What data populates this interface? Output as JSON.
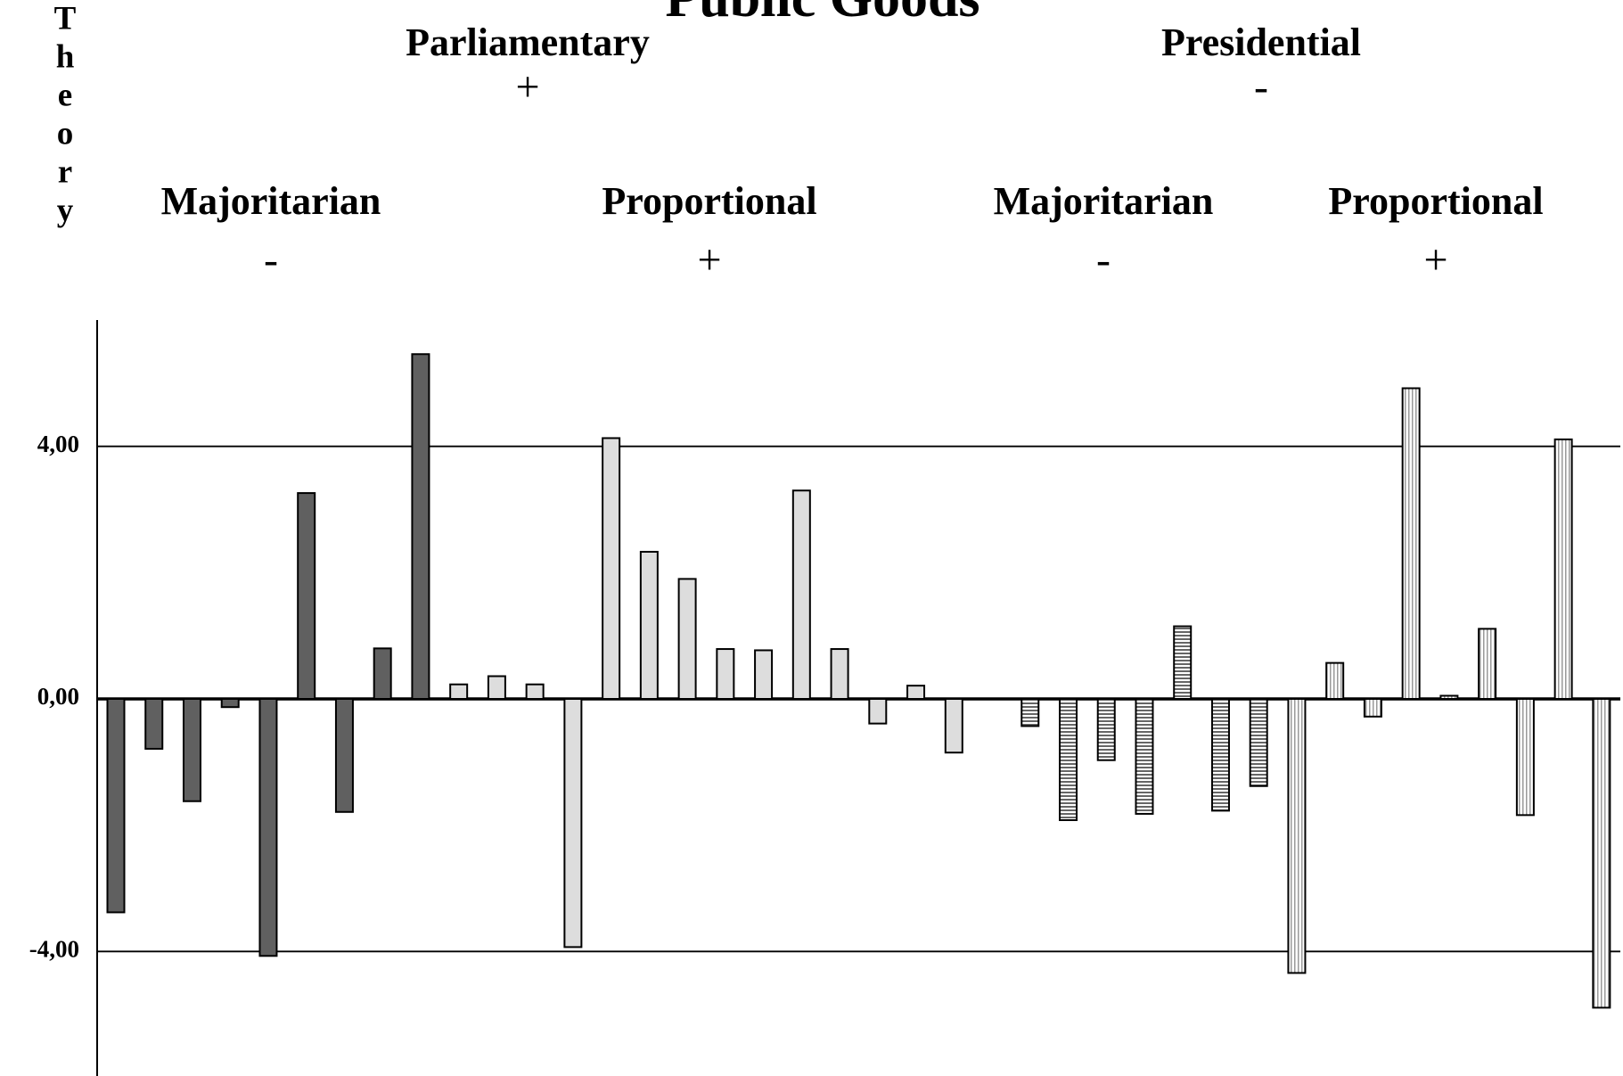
{
  "chart_data": {
    "type": "bar",
    "title": "Public Goods",
    "y_label": "Theory",
    "headers": [
      {
        "text": "Parliamentary",
        "sign": "+"
      },
      {
        "text": "Presidential",
        "sign": "-"
      }
    ],
    "subheaders": [
      {
        "text": "Majoritarian",
        "sign": "-"
      },
      {
        "text": "Proportional",
        "sign": "+"
      },
      {
        "text": "Majoritarian",
        "sign": "-"
      },
      {
        "text": "Proportional",
        "sign": "+"
      }
    ],
    "series": [
      {
        "color": "#606060",
        "hatch": "none",
        "values": [
          -3.38,
          -0.79,
          -1.62,
          -0.13,
          -4.07,
          3.26,
          -1.79,
          0.8,
          5.46
        ]
      },
      {
        "color": "#dddddd",
        "hatch": "none",
        "values": [
          0.23,
          0.36,
          0.23,
          -3.93,
          4.13,
          2.33,
          1.9,
          0.79,
          0.77,
          3.3,
          0.79,
          -0.39,
          0.21,
          -0.85
        ]
      },
      {
        "color": "#888888",
        "hatch": "horizontal",
        "values": [
          null,
          -0.43,
          -1.92,
          -0.97,
          -1.82,
          1.15,
          -1.77,
          -1.38
        ]
      },
      {
        "color": "#bbbbbb",
        "hatch": "vertical",
        "values": [
          -4.34,
          0.57,
          -0.28,
          4.92,
          0.05,
          1.11,
          -1.84,
          4.11,
          -4.89
        ]
      }
    ],
    "ylim": [
      -6,
      6
    ],
    "yticks": [
      {
        "value": 4,
        "label": "4,00"
      },
      {
        "value": 0,
        "label": "0,00"
      },
      {
        "value": -4,
        "label": "-4,00"
      }
    ],
    "grid": true
  }
}
